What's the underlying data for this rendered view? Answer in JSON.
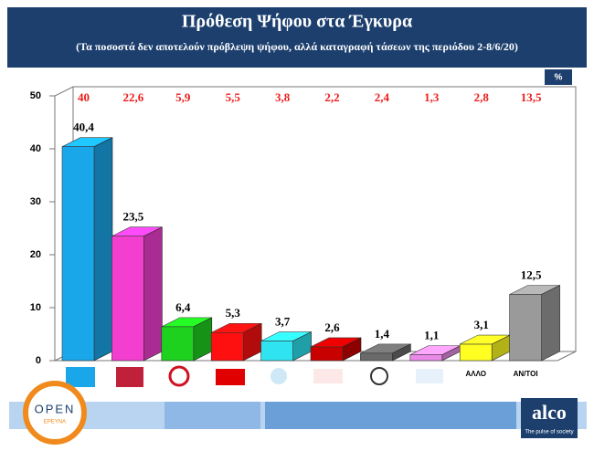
{
  "chart_data": {
    "type": "bar3d",
    "title": "Πρόθεση Ψήφου στα Έγκυρα",
    "subtitle": "(Τα ποσοστά δεν αποτελούν πρόβλεψη ψήφου, αλλά καταγραφή τάσεων της περιόδου 2-8/6/20)",
    "unit": "%",
    "categories": [
      null,
      null,
      null,
      null,
      null,
      null,
      null,
      null,
      "ΑΛΛΟ",
      "ΑΝ/ΤΟΙ"
    ],
    "values": [
      40.4,
      23.5,
      6.4,
      5.3,
      3.7,
      2.6,
      1.4,
      1.1,
      3.1,
      12.5
    ],
    "value_labels": [
      "40,4",
      "23,5",
      "6,4",
      "5,3",
      "3,7",
      "2,6",
      "1,4",
      "1,1",
      "3,1",
      "12,5"
    ],
    "colors": [
      "#1aa7ea",
      "#f23fd0",
      "#1fd11f",
      "#ff1010",
      "#2fe3f0",
      "#c80000",
      "#6a6a6a",
      "#e98ae9",
      "#ffff22",
      "#9a9a9a"
    ],
    "comparison": {
      "values": [
        40,
        22.6,
        5.9,
        5.5,
        3.8,
        2.2,
        2.4,
        1.3,
        2.8,
        13.5
      ],
      "value_labels": [
        "40",
        "22,6",
        "5,9",
        "5,5",
        "3,8",
        "2,2",
        "2,4",
        "1,3",
        "2,8",
        "13,5"
      ]
    },
    "ylim": [
      0,
      50
    ],
    "yticks": [
      0,
      10,
      20,
      30,
      40,
      50
    ]
  },
  "footer": {
    "brand": "alco",
    "tagline": "The pulse of society",
    "partner": "OPEN",
    "partner_sub": "ΕΡΕΥΝΑ"
  }
}
